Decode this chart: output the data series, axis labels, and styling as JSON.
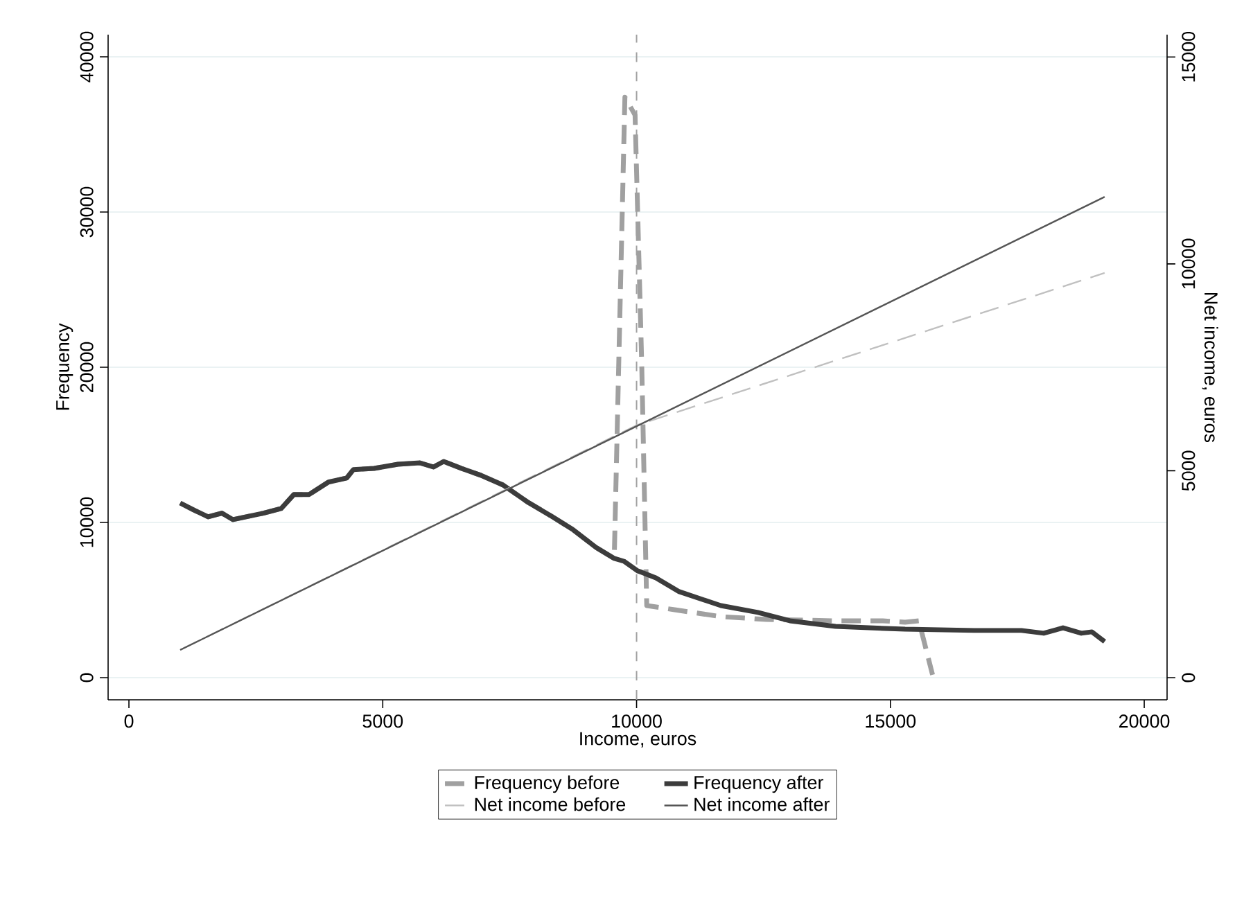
{
  "chart_data": {
    "type": "line",
    "xlabel": "Income, euros",
    "ylabel": "Frequency",
    "y2label": "Net income, euros",
    "xlim": [
      -410,
      20450
    ],
    "xticks": [
      0,
      5000,
      10000,
      15000,
      20000
    ],
    "ylim": [
      -1430,
      41430
    ],
    "yticks": [
      0,
      10000,
      20000,
      30000,
      40000
    ],
    "y2lim": [
      -536,
      15540
    ],
    "y2ticks": [
      0,
      5000,
      10000,
      15000
    ],
    "grid": "y",
    "legend": "bottom",
    "ref_lines": [
      {
        "axis": "x",
        "value": 10000,
        "color": "#a0a0a0",
        "line_style": "dashed"
      }
    ],
    "series": [
      {
        "name": "Frequency before",
        "color": "#a0a0a0",
        "line_style": "dashed",
        "axis": "y",
        "x": [
          1010,
          1280,
          1560,
          1830,
          2050,
          2650,
          3000,
          3250,
          3550,
          3930,
          4290,
          4420,
          4830,
          5300,
          5730,
          6000,
          6200,
          6550,
          6930,
          7370,
          7840,
          8300,
          8740,
          9200,
          9560,
          9770,
          9970,
          10100,
          10200,
          10750,
          11660,
          12560,
          13920,
          14850,
          15290,
          15560,
          15830
        ],
        "values": [
          11250,
          10800,
          10360,
          10600,
          10180,
          10600,
          10900,
          11800,
          11800,
          12600,
          12860,
          13400,
          13480,
          13750,
          13840,
          13570,
          13930,
          13480,
          13040,
          12410,
          11340,
          10450,
          9550,
          8390,
          7680,
          37400,
          36250,
          20400,
          4640,
          4375,
          3930,
          3750,
          3660,
          3660,
          3570,
          3660,
          180
        ]
      },
      {
        "name": "Frequency after",
        "color": "#3c3c3c",
        "line_style": "solid",
        "axis": "y",
        "x": [
          1010,
          1280,
          1560,
          1830,
          2050,
          2650,
          3000,
          3250,
          3550,
          3930,
          4290,
          4420,
          4830,
          5300,
          5730,
          6000,
          6200,
          6550,
          6930,
          7370,
          7840,
          8300,
          8740,
          9200,
          9560,
          9750,
          10020,
          10100,
          10380,
          10840,
          11660,
          12390,
          13020,
          13920,
          15290,
          16650,
          17580,
          18020,
          18400,
          18760,
          18970,
          19220
        ],
        "values": [
          11250,
          10800,
          10360,
          10600,
          10180,
          10600,
          10900,
          11800,
          11800,
          12600,
          12860,
          13400,
          13480,
          13750,
          13840,
          13570,
          13930,
          13480,
          13040,
          12410,
          11340,
          10450,
          9550,
          8390,
          7680,
          7500,
          6880,
          6790,
          6430,
          5540,
          4640,
          4200,
          3660,
          3300,
          3120,
          3040,
          3040,
          2860,
          3210,
          2860,
          2950,
          2320
        ]
      },
      {
        "name": "Net income before",
        "color": "#c0c0c0",
        "line_style": "dashed",
        "axis": "y2",
        "x": [
          1010,
          10000,
          19220
        ],
        "values": [
          670,
          6100,
          9780
        ]
      },
      {
        "name": "Net income after",
        "color": "#555555",
        "line_style": "solid",
        "axis": "y2",
        "x": [
          1010,
          19220
        ],
        "values": [
          670,
          11620
        ]
      }
    ]
  }
}
